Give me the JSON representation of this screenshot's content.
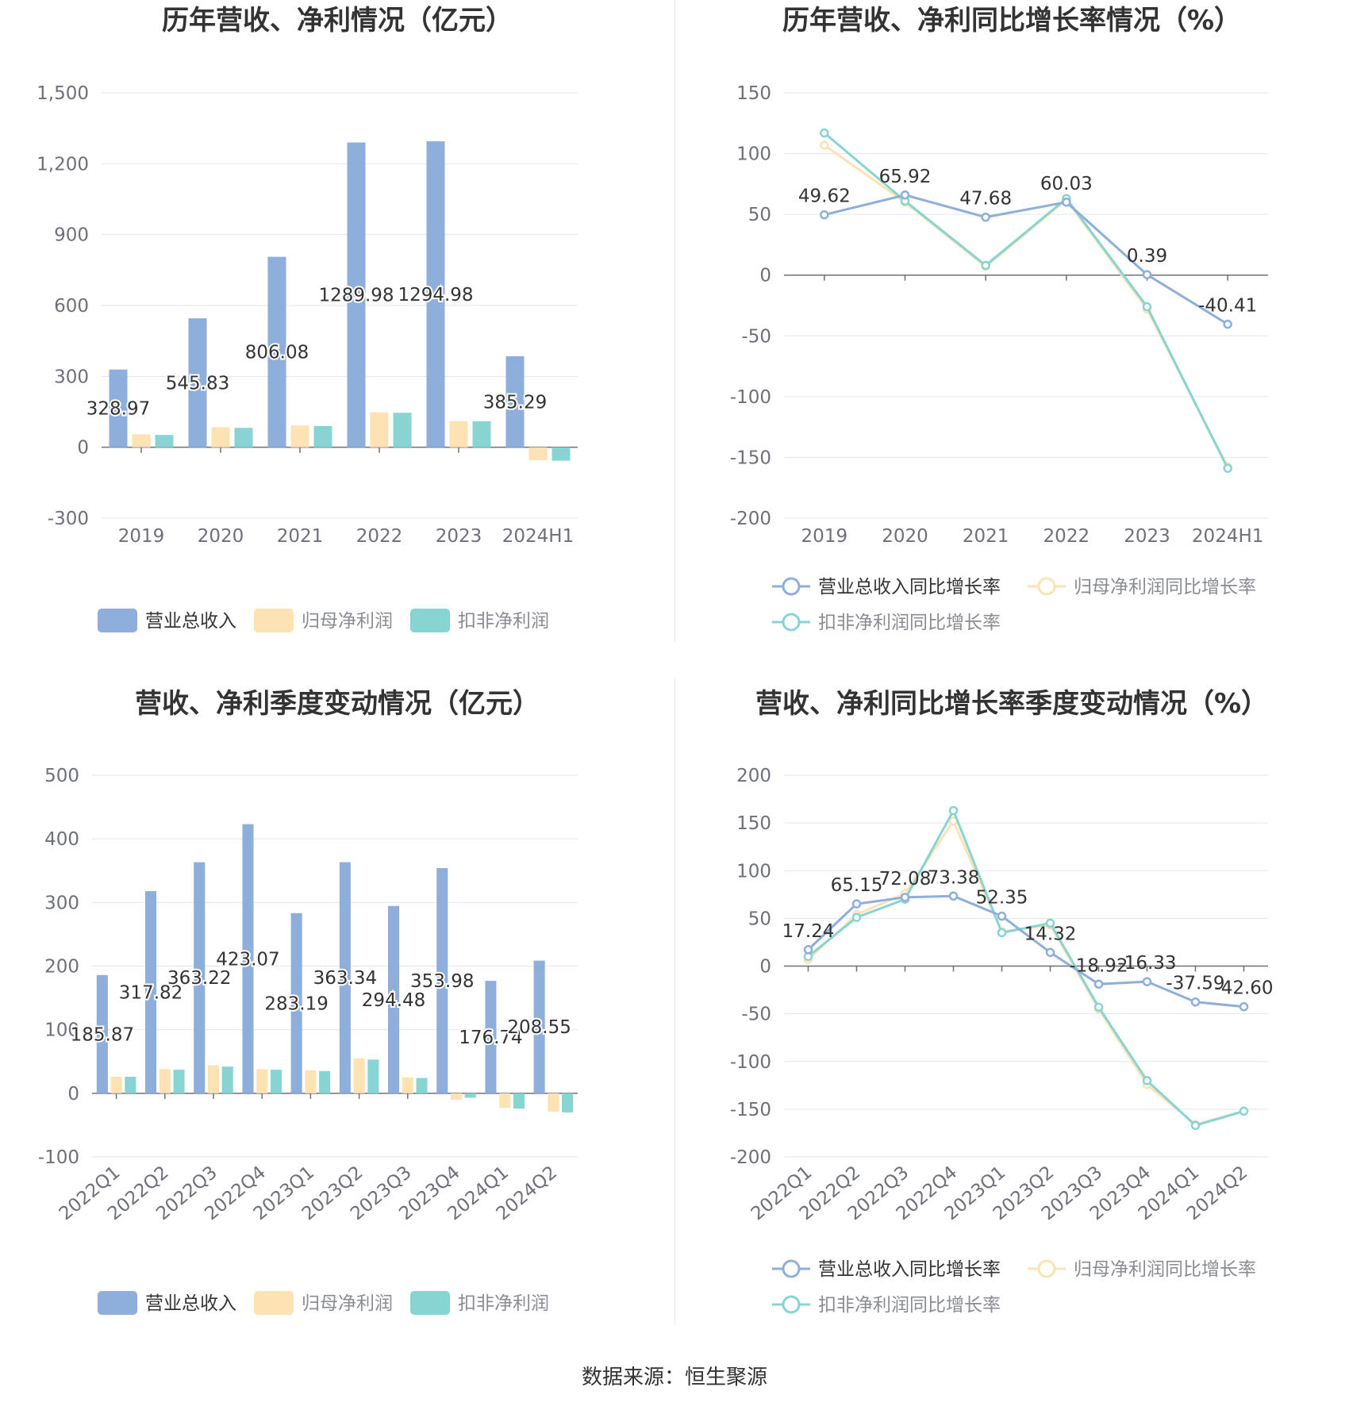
{
  "colors": {
    "revenue": "#8eaedc",
    "net": "#fde3b3",
    "deduct": "#88d4d3",
    "grid": "#e0e6f1",
    "axis": "#6e7079"
  },
  "source": "数据来源：恒生聚源",
  "legend_bar": [
    "营业总收入",
    "归母净利润",
    "扣非净利润"
  ],
  "legend_line": [
    "营业总收入同比增长率",
    "归母净利润同比增长率",
    "扣非净利润同比增长率"
  ],
  "chart_data": [
    {
      "type": "bar",
      "title": "历年营收、净利情况（亿元）",
      "categories": [
        "2019",
        "2020",
        "2021",
        "2022",
        "2023",
        "2024H1"
      ],
      "ylim": [
        -300,
        1500
      ],
      "yticks": [
        -300,
        0,
        300,
        600,
        900,
        1200,
        1500
      ],
      "ytick_labels": [
        "-300",
        "0",
        "300",
        "600",
        "900",
        "1,200",
        "1,500"
      ],
      "series": [
        {
          "name": "营业总收入",
          "values": [
            328.97,
            545.83,
            806.08,
            1289.98,
            1294.98,
            385.29
          ],
          "labels": [
            "328.97",
            "545.83",
            "806.08",
            "1289.98",
            "1294.98",
            "385.29"
          ]
        },
        {
          "name": "归母净利润",
          "values": [
            55,
            85,
            92,
            148,
            110,
            -55
          ]
        },
        {
          "name": "扣非净利润",
          "values": [
            52,
            82,
            90,
            146,
            110,
            -57
          ]
        }
      ],
      "legend": "bottom"
    },
    {
      "type": "line",
      "title": "历年营收、净利同比增长率情况（%）",
      "categories": [
        "2019",
        "2020",
        "2021",
        "2022",
        "2023",
        "2024H1"
      ],
      "ylim": [
        -200,
        150
      ],
      "yticks": [
        -200,
        -150,
        -100,
        -50,
        0,
        50,
        100,
        150
      ],
      "ytick_labels": [
        "-200",
        "-150",
        "-100",
        "-50",
        "0",
        "50",
        "100",
        "150"
      ],
      "series": [
        {
          "name": "营业总收入同比增长率",
          "values": [
            49.62,
            65.92,
            47.68,
            60.03,
            0.39,
            -40.41
          ],
          "labels": [
            "49.62",
            "65.92",
            "47.68",
            "60.03",
            "0.39",
            "-40.41"
          ]
        },
        {
          "name": "归母净利润同比增长率",
          "values": [
            107,
            60,
            7,
            62,
            -28,
            -158
          ]
        },
        {
          "name": "扣非净利润同比增长率",
          "values": [
            117,
            61,
            8,
            63,
            -26,
            -159
          ]
        }
      ],
      "legend": "bottom"
    },
    {
      "type": "bar",
      "title": "营收、净利季度变动情况（亿元）",
      "categories": [
        "2022Q1",
        "2022Q2",
        "2022Q3",
        "2022Q4",
        "2023Q1",
        "2023Q2",
        "2023Q3",
        "2023Q4",
        "2024Q1",
        "2024Q2"
      ],
      "ylim": [
        -100,
        500
      ],
      "yticks": [
        -100,
        0,
        100,
        200,
        300,
        400,
        500
      ],
      "ytick_labels": [
        "-100",
        "0",
        "100",
        "200",
        "300",
        "400",
        "500"
      ],
      "series": [
        {
          "name": "营业总收入",
          "values": [
            185.87,
            317.82,
            363.22,
            423.07,
            283.19,
            363.34,
            294.48,
            353.98,
            176.74,
            208.55
          ],
          "labels": [
            "185.87",
            "317.82",
            "363.22",
            "423.07",
            "283.19",
            "363.34",
            "294.48",
            "353.98",
            "176.74",
            "208.55"
          ]
        },
        {
          "name": "归母净利润",
          "values": [
            26,
            38,
            44,
            38,
            36,
            55,
            25,
            -10,
            -23,
            -29
          ]
        },
        {
          "name": "扣非净利润",
          "values": [
            26,
            37,
            42,
            37,
            35,
            53,
            24,
            -7,
            -24,
            -30
          ]
        }
      ],
      "legend": "bottom"
    },
    {
      "type": "line",
      "title": "营收、净利同比增长率季度变动情况（%）",
      "categories": [
        "2022Q1",
        "2022Q2",
        "2022Q3",
        "2022Q4",
        "2023Q1",
        "2023Q2",
        "2023Q3",
        "2023Q4",
        "2024Q1",
        "2024Q2"
      ],
      "ylim": [
        -200,
        200
      ],
      "yticks": [
        -200,
        -150,
        -100,
        -50,
        0,
        50,
        100,
        150,
        200
      ],
      "ytick_labels": [
        "-200",
        "-150",
        "-100",
        "-50",
        "0",
        "50",
        "100",
        "150",
        "200"
      ],
      "series": [
        {
          "name": "营业总收入同比增长率",
          "values": [
            17.24,
            65.15,
            72.08,
            73.38,
            52.35,
            14.32,
            -18.92,
            -16.33,
            -37.59,
            -42.6
          ],
          "labels": [
            "17.24",
            "65.15",
            "72.08",
            "73.38",
            "52.35",
            "14.32",
            "-18.92",
            "-16.33",
            "-37.59",
            "-42.60"
          ]
        },
        {
          "name": "归母净利润同比增长率",
          "values": [
            7,
            54,
            76,
            152,
            36,
            43,
            -45,
            -124,
            -166,
            -152
          ]
        },
        {
          "name": "扣非净利润同比增长率",
          "values": [
            10,
            51,
            70,
            163,
            35,
            45,
            -43,
            -120,
            -167,
            -152
          ]
        }
      ],
      "legend": "bottom"
    }
  ]
}
